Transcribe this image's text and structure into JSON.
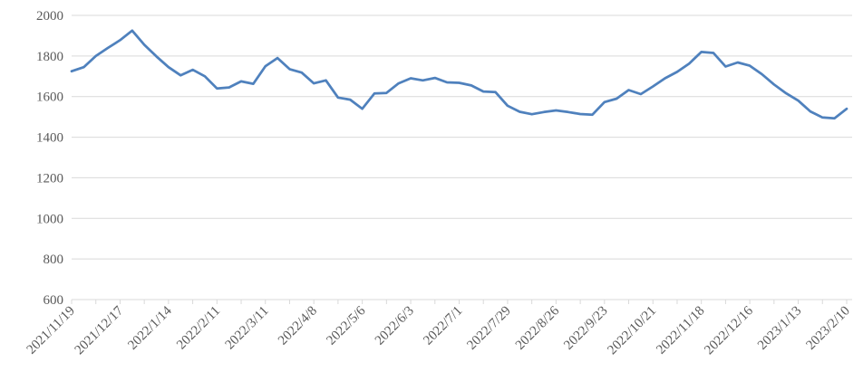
{
  "chart_data": {
    "type": "line",
    "title": "",
    "legend_position": "none",
    "grid": "on",
    "ylim": [
      600,
      2000
    ],
    "y_ticks": [
      600,
      800,
      1000,
      1200,
      1400,
      1600,
      1800,
      2000
    ],
    "x_tick_labels": [
      "2021/11/19",
      "2021/12/17",
      "2022/1/14",
      "2022/2/11",
      "2022/3/11",
      "2022/4/8",
      "2022/5/6",
      "2022/6/3",
      "2022/7/1",
      "2022/7/29",
      "2022/8/26",
      "2022/9/23",
      "2022/10/21",
      "2022/11/18",
      "2022/12/16",
      "2023/1/13",
      "2023/2/10"
    ],
    "points_per_label": 4,
    "minor_tick_every_n_points": 2,
    "values": [
      1725,
      1745,
      1800,
      1840,
      1878,
      1925,
      1855,
      1798,
      1745,
      1705,
      1732,
      1700,
      1640,
      1645,
      1675,
      1663,
      1750,
      1790,
      1735,
      1718,
      1665,
      1680,
      1595,
      1585,
      1540,
      1615,
      1618,
      1665,
      1690,
      1680,
      1692,
      1670,
      1668,
      1655,
      1625,
      1622,
      1555,
      1525,
      1513,
      1524,
      1532,
      1524,
      1514,
      1511,
      1573,
      1590,
      1632,
      1612,
      1650,
      1690,
      1722,
      1763,
      1820,
      1815,
      1748,
      1768,
      1752,
      1710,
      1660,
      1616,
      1580,
      1527,
      1497,
      1493,
      1540
    ],
    "line_color": "#4F81BD",
    "gridline_color": "#D9D9D9",
    "axis_color": "#D9D9D9",
    "label_color": "#595959"
  }
}
